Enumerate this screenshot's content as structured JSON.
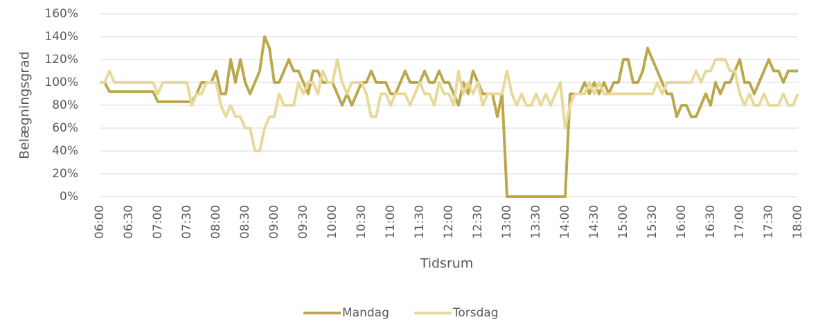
{
  "chart_data": {
    "type": "line",
    "y_label": "Belægningsgrad",
    "x_label": "Tidsrum",
    "categories": [
      "06:00",
      null,
      null,
      null,
      null,
      null,
      "06:30",
      null,
      null,
      null,
      null,
      null,
      "07:00",
      null,
      null,
      null,
      null,
      null,
      "07:30",
      null,
      null,
      null,
      null,
      null,
      "08:00",
      null,
      null,
      null,
      null,
      null,
      "08:30",
      null,
      null,
      null,
      null,
      null,
      "09:00",
      null,
      null,
      null,
      null,
      null,
      "09:30",
      null,
      null,
      null,
      null,
      null,
      "10:00",
      null,
      null,
      null,
      null,
      null,
      "10:30",
      null,
      null,
      null,
      null,
      null,
      "11:00",
      null,
      null,
      null,
      null,
      null,
      "11:30",
      null,
      null,
      null,
      null,
      null,
      "12:00",
      null,
      null,
      null,
      null,
      null,
      "12:30",
      null,
      null,
      null,
      null,
      null,
      "13:00",
      null,
      null,
      null,
      null,
      null,
      "13:30",
      null,
      null,
      null,
      null,
      null,
      "14:00",
      null,
      null,
      null,
      null,
      null,
      "14:30",
      null,
      null,
      null,
      null,
      null,
      "15:00",
      null,
      null,
      null,
      null,
      null,
      "15:30",
      null,
      null,
      null,
      null,
      null,
      "16:00",
      null,
      null,
      null,
      null,
      null,
      "16:30",
      null,
      null,
      null,
      null,
      null,
      "17:00",
      null,
      null,
      null,
      null,
      null,
      "17:30",
      null,
      null,
      null,
      null,
      null,
      "18:00"
    ],
    "series": [
      {
        "name": "Mandag",
        "color": "#bca84c",
        "values": [
          100,
          100,
          92,
          92,
          92,
          92,
          92,
          92,
          92,
          92,
          92,
          92,
          83,
          83,
          83,
          83,
          83,
          83,
          83,
          83,
          90,
          100,
          100,
          100,
          110,
          90,
          90,
          120,
          100,
          120,
          100,
          90,
          100,
          110,
          140,
          130,
          100,
          100,
          110,
          120,
          110,
          110,
          100,
          90,
          110,
          110,
          100,
          100,
          100,
          90,
          80,
          90,
          80,
          90,
          100,
          100,
          110,
          100,
          100,
          100,
          90,
          90,
          100,
          110,
          100,
          100,
          100,
          110,
          100,
          100,
          110,
          100,
          100,
          90,
          80,
          100,
          90,
          110,
          100,
          90,
          90,
          90,
          70,
          90,
          0,
          0,
          0,
          0,
          0,
          0,
          0,
          0,
          0,
          0,
          0,
          0,
          0,
          90,
          90,
          90,
          100,
          90,
          100,
          90,
          100,
          90,
          100,
          100,
          120,
          120,
          100,
          100,
          110,
          130,
          120,
          110,
          100,
          90,
          90,
          70,
          80,
          80,
          70,
          70,
          80,
          90,
          80,
          100,
          90,
          100,
          100,
          110,
          120,
          100,
          100,
          90,
          100,
          110,
          120,
          110,
          110,
          100,
          110,
          110,
          110
        ]
      },
      {
        "name": "Torsdag",
        "color": "#e8d99b",
        "values": [
          100,
          100,
          110,
          100,
          100,
          100,
          100,
          100,
          100,
          100,
          100,
          100,
          90,
          100,
          100,
          100,
          100,
          100,
          100,
          80,
          90,
          90,
          100,
          100,
          100,
          80,
          70,
          80,
          70,
          70,
          60,
          60,
          40,
          40,
          60,
          70,
          70,
          90,
          80,
          80,
          80,
          100,
          90,
          100,
          100,
          90,
          110,
          100,
          100,
          120,
          100,
          90,
          100,
          100,
          100,
          90,
          70,
          70,
          90,
          90,
          80,
          90,
          90,
          90,
          80,
          90,
          100,
          90,
          90,
          80,
          100,
          90,
          90,
          80,
          110,
          90,
          100,
          90,
          100,
          80,
          90,
          90,
          90,
          90,
          110,
          90,
          80,
          90,
          80,
          80,
          90,
          80,
          90,
          80,
          90,
          100,
          60,
          80,
          90,
          90,
          90,
          100,
          90,
          100,
          90,
          90,
          90,
          90,
          90,
          90,
          90,
          90,
          90,
          90,
          90,
          100,
          90,
          100,
          100,
          100,
          100,
          100,
          100,
          110,
          100,
          110,
          110,
          120,
          120,
          120,
          110,
          110,
          90,
          80,
          90,
          80,
          80,
          90,
          80,
          80,
          80,
          90,
          80,
          80,
          90
        ]
      }
    ],
    "ylim": [
      0,
      160
    ],
    "yticks": [
      {
        "value": 0,
        "label": "0%"
      },
      {
        "value": 20,
        "label": "20%"
      },
      {
        "value": 40,
        "label": "40%"
      },
      {
        "value": 60,
        "label": "60%"
      },
      {
        "value": 80,
        "label": "80%"
      },
      {
        "value": 100,
        "label": "100%"
      },
      {
        "value": 120,
        "label": "120%"
      },
      {
        "value": 140,
        "label": "140%"
      },
      {
        "value": 160,
        "label": "160%"
      }
    ],
    "grid": true,
    "legend": "bottom"
  }
}
